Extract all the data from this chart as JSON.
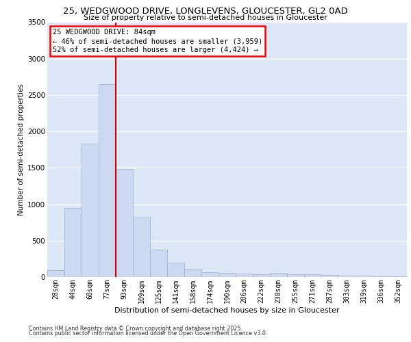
{
  "title_line1": "25, WEDGWOOD DRIVE, LONGLEVENS, GLOUCESTER, GL2 0AD",
  "title_line2": "Size of property relative to semi-detached houses in Gloucester",
  "xlabel": "Distribution of semi-detached houses by size in Gloucester",
  "ylabel": "Number of semi-detached properties",
  "footer_line1": "Contains HM Land Registry data © Crown copyright and database right 2025.",
  "footer_line2": "Contains public sector information licensed under the Open Government Licence v3.0.",
  "annotation_title": "25 WEDGWOOD DRIVE: 84sqm",
  "annotation_line2": "← 46% of semi-detached houses are smaller (3,959)",
  "annotation_line3": "52% of semi-detached houses are larger (4,424) →",
  "bar_color": "#ccd9f0",
  "bar_edge_color": "#9ab0cc",
  "vline_color": "#cc0000",
  "bg_color": "#dce8f8",
  "fig_bg": "#ffffff",
  "categories": [
    "28sqm",
    "44sqm",
    "60sqm",
    "77sqm",
    "93sqm",
    "109sqm",
    "125sqm",
    "141sqm",
    "158sqm",
    "174sqm",
    "190sqm",
    "206sqm",
    "222sqm",
    "238sqm",
    "255sqm",
    "271sqm",
    "287sqm",
    "303sqm",
    "319sqm",
    "336sqm",
    "352sqm"
  ],
  "values": [
    95,
    950,
    1830,
    2650,
    1480,
    820,
    380,
    200,
    115,
    70,
    60,
    50,
    40,
    55,
    40,
    35,
    30,
    20,
    15,
    10,
    5
  ],
  "ylim": [
    0,
    3500
  ],
  "yticks": [
    0,
    500,
    1000,
    1500,
    2000,
    2500,
    3000,
    3500
  ],
  "vline_x": 3.5,
  "ann_fontsize": 7.5,
  "title1_fontsize": 9.5,
  "title2_fontsize": 8.0,
  "ylabel_fontsize": 7.5,
  "xlabel_fontsize": 8.0,
  "tick_fontsize": 7.0,
  "ytick_fontsize": 7.5,
  "footer_fontsize": 5.8
}
